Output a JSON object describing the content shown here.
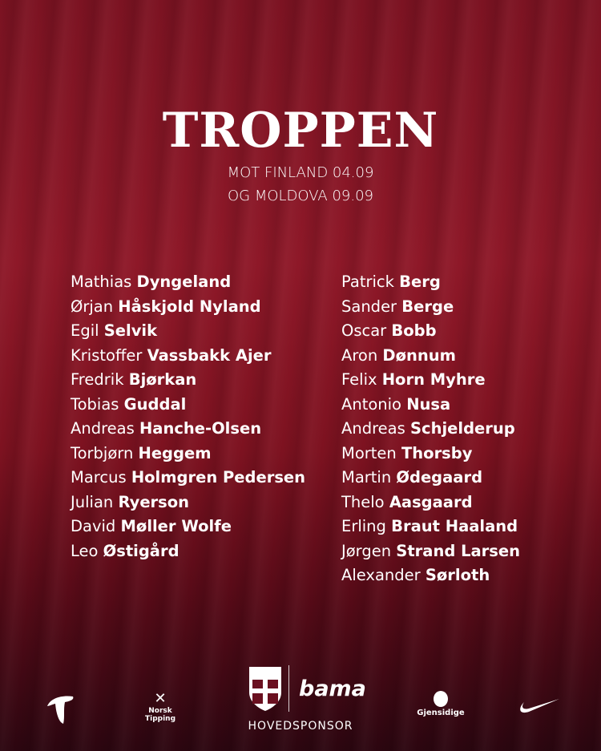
{
  "title": "TROPPEN",
  "subtitle_lines": [
    "MOT FINLAND 04.09",
    "OG MOLDOVA 09.09"
  ],
  "left_column": [
    {
      "first": "Mathias",
      "last": "Dyngeland"
    },
    {
      "first": "Ørjan",
      "last": "Håskjold Nyland"
    },
    {
      "first": "Egil",
      "last": "Selvik"
    },
    {
      "first": "Kristoffer",
      "last": "Vassbakk Ajer"
    },
    {
      "first": "Fredrik",
      "last": "Bjørkan"
    },
    {
      "first": "Tobias",
      "last": "Guddal"
    },
    {
      "first": "Andreas",
      "last": "Hanche-Olsen"
    },
    {
      "first": "Torbjørn",
      "last": "Heggem"
    },
    {
      "first": "Marcus",
      "last": "Holmgren Pedersen"
    },
    {
      "first": "Julian",
      "last": "Ryerson"
    },
    {
      "first": "David",
      "last": "Møller Wolfe"
    },
    {
      "first": "Leo",
      "last": "Østigård"
    }
  ],
  "right_column": [
    {
      "first": "Patrick",
      "last": "Berg"
    },
    {
      "first": "Sander",
      "last": "Berge"
    },
    {
      "first": "Oscar",
      "last": "Bobb"
    },
    {
      "first": "Aron",
      "last": "Dønnum"
    },
    {
      "first": "Felix",
      "last": "Horn Myhre"
    },
    {
      "first": "Antonio",
      "last": "Nusa"
    },
    {
      "first": "Andreas",
      "last": "Schjelderup"
    },
    {
      "first": "Morten",
      "last": "Thorsby"
    },
    {
      "first": "Martin",
      "last": "Ødegaard"
    },
    {
      "first": "Thelo",
      "last": "Aasgaard"
    },
    {
      "first": "Erling",
      "last": "Braut Haaland"
    },
    {
      "first": "Jørgen",
      "last": "Strand Larsen"
    },
    {
      "first": "Alexander",
      "last": "Sørloth"
    }
  ],
  "sponsors": {
    "telenor_icon": "telenor-logo",
    "norsk_tipping": "Norsk Tipping",
    "main_sponsor": "bama",
    "main_label": "HOVEDSPONSOR",
    "gjensidige": "Gjensidige",
    "nike_icon": "nike-swoosh"
  }
}
